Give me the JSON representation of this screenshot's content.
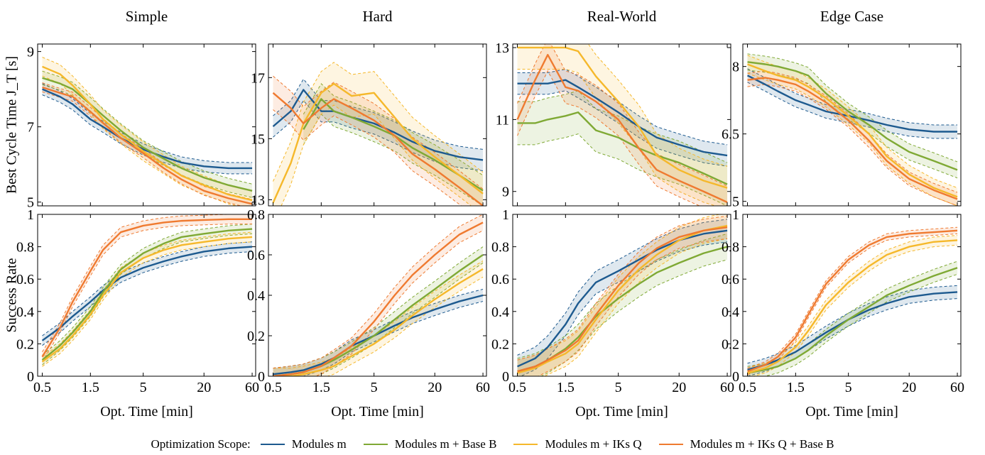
{
  "legend": {
    "title": "Optimization Scope:",
    "items": [
      {
        "label": "Modules m",
        "color": "#1d5a8f"
      },
      {
        "label": "Modules m + Base B",
        "color": "#7fa934"
      },
      {
        "label": "Modules m + IKs Q",
        "color": "#f5b82b"
      },
      {
        "label": "Modules m + IKs Q + Base B",
        "color": "#ef7a30"
      }
    ]
  },
  "chart_data": {
    "type": "line",
    "xlabel": "Opt. Time [min]",
    "xscale": "log",
    "xticks": [
      0.5,
      1.5,
      5,
      20,
      60
    ],
    "xticklabels": [
      "0.5",
      "1.5",
      "5",
      "20",
      "60"
    ],
    "xlim": [
      0.45,
      65
    ],
    "x": [
      0.5,
      0.75,
      1,
      1.5,
      2,
      3,
      5,
      8,
      12,
      20,
      35,
      60
    ],
    "series_names": [
      "Modules m",
      "Modules m + Base B",
      "Modules m + IKs Q",
      "Modules m + IKs Q + Base B"
    ],
    "series_colors": [
      "#1d5a8f",
      "#7fa934",
      "#f5b82b",
      "#ef7a30"
    ],
    "columns": [
      "Simple",
      "Hard",
      "Real-World",
      "Edge Case"
    ],
    "row_ylabels": [
      "Best Cycle Time J_T [s]",
      "Success Rate"
    ],
    "panels": [
      {
        "column": "Simple",
        "metric": "Best Cycle Time",
        "ylim": [
          4.9,
          9.2
        ],
        "yticks": [
          5,
          7,
          9
        ],
        "yticklabels": [
          "5",
          "7",
          "9"
        ],
        "series": [
          {
            "name": "Modules m",
            "values": [
              8.0,
              7.8,
              7.6,
              7.2,
              7.0,
              6.7,
              6.4,
              6.2,
              6.05,
              5.95,
              5.9,
              5.9
            ],
            "band": 0.15
          },
          {
            "name": "Modules m + Base B",
            "values": [
              8.3,
              8.15,
              8.0,
              7.6,
              7.3,
              6.9,
              6.45,
              6.15,
              5.9,
              5.65,
              5.45,
              5.3
            ],
            "band": 0.18
          },
          {
            "name": "Modules m + IKs Q",
            "values": [
              8.6,
              8.4,
              8.1,
              7.6,
              7.2,
              6.8,
              6.35,
              6.0,
              5.7,
              5.45,
              5.2,
              5.05
            ],
            "band": 0.25
          },
          {
            "name": "Modules m + IKs Q + Base B",
            "values": [
              8.05,
              7.9,
              7.8,
              7.4,
              7.1,
              6.7,
              6.3,
              5.9,
              5.6,
              5.3,
              5.1,
              4.95
            ],
            "band": 0.12
          }
        ]
      },
      {
        "column": "Hard",
        "metric": "Best Cycle Time",
        "ylim": [
          12.8,
          18.1
        ],
        "yticks": [
          13,
          15,
          17
        ],
        "yticklabels": [
          "13",
          "15",
          "17"
        ],
        "series": [
          {
            "name": "Modules m",
            "values": [
              15.4,
              15.9,
              16.6,
              15.9,
              15.9,
              15.7,
              15.5,
              15.2,
              14.9,
              14.6,
              14.4,
              14.3
            ],
            "band": 0.35
          },
          {
            "name": "Modules m + Base B",
            "values": [
              null,
              null,
              15.3,
              16.3,
              15.9,
              15.7,
              15.4,
              15.1,
              14.7,
              14.3,
              13.8,
              13.3
            ],
            "band": 0.5
          },
          {
            "name": "Modules m + IKs Q",
            "values": [
              12.9,
              14.2,
              15.5,
              16.5,
              16.8,
              16.4,
              16.5,
              15.7,
              15.0,
              14.4,
              13.8,
              13.2
            ],
            "band": 0.7
          },
          {
            "name": "Modules m + IKs Q + Base B",
            "values": [
              16.5,
              16.0,
              15.5,
              16.0,
              16.3,
              16.0,
              15.6,
              15.1,
              14.5,
              14.0,
              13.4,
              12.8
            ],
            "band": 0.55
          }
        ]
      },
      {
        "column": "Real-World",
        "metric": "Best Cycle Time",
        "ylim": [
          8.6,
          13.1
        ],
        "yticks": [
          9,
          11,
          13
        ],
        "yticklabels": [
          "9",
          "11",
          "13"
        ],
        "series": [
          {
            "name": "Modules m",
            "values": [
              12.0,
              12.0,
              12.0,
              12.1,
              11.9,
              11.6,
              11.2,
              10.8,
              10.5,
              10.3,
              10.1,
              10.0
            ],
            "band": 0.3
          },
          {
            "name": "Modules m + Base B",
            "values": [
              10.9,
              10.9,
              11.0,
              11.1,
              11.2,
              10.7,
              10.5,
              10.2,
              10.0,
              9.8,
              9.5,
              9.2
            ],
            "band": 0.6
          },
          {
            "name": "Modules m + IKs Q",
            "values": [
              13.0,
              13.0,
              13.0,
              13.0,
              12.9,
              12.2,
              11.5,
              10.8,
              10.0,
              9.6,
              9.3,
              9.1
            ],
            "band": 0.6
          },
          {
            "name": "Modules m + IKs Q + Base B",
            "values": [
              11.0,
              12.1,
              12.8,
              11.9,
              11.8,
              11.5,
              11.0,
              10.2,
              9.6,
              9.3,
              9.0,
              8.7
            ],
            "band": 0.45
          }
        ]
      },
      {
        "column": "Edge Case",
        "metric": "Best Cycle Time",
        "ylim": [
          4.9,
          8.5
        ],
        "yticks": [
          5,
          6.5,
          8
        ],
        "yticklabels": [
          "5",
          "6.5",
          "8"
        ],
        "series": [
          {
            "name": "Modules m",
            "values": [
              7.8,
              7.6,
              7.45,
              7.25,
              7.15,
              7.0,
              6.9,
              6.8,
              6.7,
              6.6,
              6.55,
              6.55
            ],
            "band": 0.15
          },
          {
            "name": "Modules m + Base B",
            "values": [
              8.1,
              8.05,
              8.0,
              7.9,
              7.8,
              7.4,
              7.0,
              6.7,
              6.4,
              6.1,
              5.9,
              5.7
            ],
            "band": 0.18
          },
          {
            "name": "Modules m + IKs Q",
            "values": [
              8.05,
              7.9,
              7.8,
              7.7,
              7.55,
              7.3,
              6.9,
              6.5,
              6.0,
              5.6,
              5.3,
              5.1
            ],
            "band": 0.2
          },
          {
            "name": "Modules m + IKs Q + Base B",
            "values": [
              7.7,
              7.75,
              7.7,
              7.6,
              7.45,
              7.2,
              6.8,
              6.35,
              5.9,
              5.5,
              5.25,
              5.05
            ],
            "band": 0.15
          }
        ]
      },
      {
        "column": "Simple",
        "metric": "Success Rate",
        "ylim": [
          0,
          1
        ],
        "yticks": [
          0,
          0.2,
          0.4,
          0.6,
          0.8,
          1
        ],
        "yticklabels": [
          "0",
          "0.2",
          "0.4",
          "0.6",
          "0.8",
          "1"
        ],
        "series": [
          {
            "name": "Modules m",
            "values": [
              0.22,
              0.3,
              0.37,
              0.46,
              0.53,
              0.61,
              0.67,
              0.71,
              0.74,
              0.77,
              0.79,
              0.8
            ],
            "band": 0.03
          },
          {
            "name": "Modules m + Base B",
            "values": [
              0.1,
              0.19,
              0.27,
              0.4,
              0.52,
              0.66,
              0.76,
              0.82,
              0.86,
              0.88,
              0.9,
              0.91
            ],
            "band": 0.03
          },
          {
            "name": "Modules m + IKs Q",
            "values": [
              0.09,
              0.17,
              0.25,
              0.38,
              0.5,
              0.64,
              0.73,
              0.78,
              0.81,
              0.83,
              0.85,
              0.86
            ],
            "band": 0.03
          },
          {
            "name": "Modules m + IKs Q + Base B",
            "values": [
              0.12,
              0.3,
              0.46,
              0.65,
              0.78,
              0.89,
              0.93,
              0.95,
              0.96,
              0.965,
              0.97,
              0.97
            ],
            "band": 0.03
          }
        ]
      },
      {
        "column": "Hard",
        "metric": "Success Rate",
        "ylim": [
          0,
          0.8
        ],
        "yticks": [
          0,
          0.2,
          0.4,
          0.6,
          0.8
        ],
        "yticklabels": [
          "0",
          "0.2",
          "0.4",
          "0.6",
          "0.8"
        ],
        "series": [
          {
            "name": "Modules m",
            "values": [
              0.01,
              0.02,
              0.03,
              0.06,
              0.09,
              0.15,
              0.2,
              0.25,
              0.29,
              0.33,
              0.37,
              0.4
            ],
            "band": 0.03
          },
          {
            "name": "Modules m + Base B",
            "values": [
              0,
              0.01,
              0.02,
              0.05,
              0.08,
              0.13,
              0.2,
              0.28,
              0.35,
              0.43,
              0.52,
              0.6
            ],
            "band": 0.04
          },
          {
            "name": "Modules m + IKs Q",
            "values": [
              0,
              0,
              0.01,
              0.03,
              0.05,
              0.1,
              0.16,
              0.23,
              0.3,
              0.38,
              0.46,
              0.53
            ],
            "band": 0.04
          },
          {
            "name": "Modules m + IKs Q + Base B",
            "values": [
              0,
              0.01,
              0.02,
              0.05,
              0.09,
              0.15,
              0.27,
              0.4,
              0.5,
              0.6,
              0.7,
              0.76
            ],
            "band": 0.04
          }
        ]
      },
      {
        "column": "Real-World",
        "metric": "Success Rate",
        "ylim": [
          0,
          1
        ],
        "yticks": [
          0,
          0.2,
          0.4,
          0.6,
          0.8,
          1
        ],
        "yticklabels": [
          "0",
          "0.2",
          "0.4",
          "0.6",
          "0.8",
          "1"
        ],
        "series": [
          {
            "name": "Modules m",
            "values": [
              0.06,
              0.11,
              0.18,
              0.32,
              0.45,
              0.58,
              0.65,
              0.72,
              0.78,
              0.84,
              0.88,
              0.9
            ],
            "band": 0.07
          },
          {
            "name": "Modules m + Base B",
            "values": [
              0.03,
              0.06,
              0.1,
              0.17,
              0.24,
              0.37,
              0.48,
              0.57,
              0.64,
              0.7,
              0.76,
              0.8
            ],
            "band": 0.08
          },
          {
            "name": "Modules m + IKs Q",
            "values": [
              0.02,
              0.05,
              0.09,
              0.14,
              0.2,
              0.35,
              0.53,
              0.66,
              0.75,
              0.84,
              0.9,
              0.93
            ],
            "band": 0.08
          },
          {
            "name": "Modules m + IKs Q + Base B",
            "values": [
              0.03,
              0.06,
              0.1,
              0.16,
              0.22,
              0.38,
              0.56,
              0.7,
              0.79,
              0.86,
              0.9,
              0.92
            ],
            "band": 0.07
          }
        ]
      },
      {
        "column": "Edge Case",
        "metric": "Success Rate",
        "ylim": [
          0,
          1
        ],
        "yticks": [
          0,
          0.2,
          0.4,
          0.6,
          0.8,
          1
        ],
        "yticklabels": [
          "0",
          "0.2",
          "0.4",
          "0.6",
          "0.8",
          "1"
        ],
        "series": [
          {
            "name": "Modules m",
            "values": [
              0.04,
              0.07,
              0.1,
              0.15,
              0.2,
              0.27,
              0.35,
              0.41,
              0.45,
              0.49,
              0.51,
              0.52
            ],
            "band": 0.04
          },
          {
            "name": "Modules m + Base B",
            "values": [
              0.02,
              0.04,
              0.06,
              0.11,
              0.16,
              0.25,
              0.35,
              0.43,
              0.5,
              0.56,
              0.62,
              0.67
            ],
            "band": 0.04
          },
          {
            "name": "Modules m + IKs Q",
            "values": [
              0.02,
              0.05,
              0.09,
              0.18,
              0.28,
              0.44,
              0.58,
              0.68,
              0.75,
              0.8,
              0.83,
              0.84
            ],
            "band": 0.03
          },
          {
            "name": "Modules m + IKs Q + Base B",
            "values": [
              0.03,
              0.07,
              0.12,
              0.24,
              0.38,
              0.57,
              0.72,
              0.81,
              0.86,
              0.88,
              0.89,
              0.9
            ],
            "band": 0.02
          }
        ]
      }
    ]
  }
}
